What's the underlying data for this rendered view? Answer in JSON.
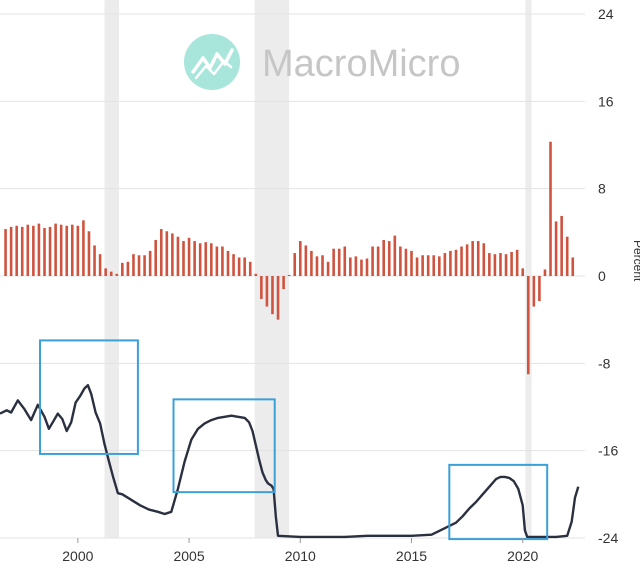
{
  "watermark": {
    "brand": "MacroMicro",
    "logo_color": "#a8e6dc"
  },
  "colors": {
    "bar": "#cf5440",
    "line": "#2a3040",
    "recession": "#ececec",
    "grid": "#e3e3e3",
    "box": "#3ba0d8"
  },
  "chart_data": {
    "type": "bar",
    "title": "",
    "xlabel": "",
    "ylabel": "Percent",
    "xlim": [
      1996.5,
      2022.8
    ],
    "ylim": [
      -24,
      24
    ],
    "y_ticks": [
      -24,
      -16,
      -8,
      0,
      8,
      16,
      24
    ],
    "x_ticks": [
      2000,
      2005,
      2010,
      2015,
      2020
    ],
    "grid": "horizontal",
    "recession_shading": [
      {
        "start": 2001.2,
        "end": 2001.85
      },
      {
        "start": 2007.95,
        "end": 2009.5
      },
      {
        "start": 2020.12,
        "end": 2020.4
      }
    ],
    "series": [
      {
        "kind": "bar",
        "frequency": "quarterly",
        "x": [
          1996.75,
          1997.0,
          1997.25,
          1997.5,
          1997.75,
          1998.0,
          1998.25,
          1998.5,
          1998.75,
          1999.0,
          1999.25,
          1999.5,
          1999.75,
          2000.0,
          2000.25,
          2000.5,
          2000.75,
          2001.0,
          2001.25,
          2001.5,
          2001.75,
          2002.0,
          2002.25,
          2002.5,
          2002.75,
          2003.0,
          2003.25,
          2003.5,
          2003.75,
          2004.0,
          2004.25,
          2004.5,
          2004.75,
          2005.0,
          2005.25,
          2005.5,
          2005.75,
          2006.0,
          2006.25,
          2006.5,
          2006.75,
          2007.0,
          2007.25,
          2007.5,
          2007.75,
          2008.0,
          2008.25,
          2008.5,
          2008.75,
          2009.0,
          2009.25,
          2009.5,
          2009.75,
          2010.0,
          2010.25,
          2010.5,
          2010.75,
          2011.0,
          2011.25,
          2011.5,
          2011.75,
          2012.0,
          2012.25,
          2012.5,
          2012.75,
          2013.0,
          2013.25,
          2013.5,
          2013.75,
          2014.0,
          2014.25,
          2014.5,
          2014.75,
          2015.0,
          2015.25,
          2015.5,
          2015.75,
          2016.0,
          2016.25,
          2016.5,
          2016.75,
          2017.0,
          2017.25,
          2017.5,
          2017.75,
          2018.0,
          2018.25,
          2018.5,
          2018.75,
          2019.0,
          2019.25,
          2019.5,
          2019.75,
          2020.0,
          2020.25,
          2020.5,
          2020.75,
          2021.0,
          2021.25,
          2021.5,
          2021.75,
          2022.0,
          2022.25
        ],
        "values": [
          4.3,
          4.5,
          4.6,
          4.5,
          4.7,
          4.6,
          4.8,
          4.4,
          4.5,
          4.8,
          4.7,
          4.6,
          4.7,
          4.6,
          5.1,
          4.1,
          2.8,
          2.0,
          0.7,
          0.4,
          0.2,
          1.2,
          1.3,
          2.0,
          1.9,
          1.9,
          2.3,
          3.3,
          4.3,
          4.1,
          3.9,
          3.6,
          3.2,
          3.5,
          3.2,
          3.0,
          3.1,
          3.0,
          2.7,
          2.7,
          2.3,
          2.0,
          1.7,
          1.7,
          1.3,
          0.2,
          -2.1,
          -2.8,
          -3.5,
          -4.0,
          -1.2,
          0.1,
          2.1,
          3.2,
          2.8,
          2.3,
          1.8,
          1.9,
          1.3,
          2.5,
          2.5,
          2.7,
          1.7,
          1.8,
          1.5,
          1.6,
          2.7,
          2.7,
          3.3,
          3.2,
          3.7,
          2.7,
          2.5,
          2.3,
          1.7,
          1.9,
          1.9,
          1.9,
          1.8,
          2.1,
          2.3,
          2.4,
          2.7,
          2.9,
          3.2,
          3.2,
          3.0,
          2.1,
          2.0,
          2.1,
          2.0,
          2.2,
          2.4,
          0.7,
          -9.0,
          -2.8,
          -2.3,
          0.6,
          12.3,
          5.0,
          5.5,
          3.6,
          1.7
        ]
      },
      {
        "kind": "line",
        "frequency": "daily",
        "x": [
          1996.5,
          1996.8,
          1997.0,
          1997.3,
          1997.6,
          1997.9,
          1998.2,
          1998.5,
          1998.7,
          1998.9,
          1999.1,
          1999.3,
          1999.5,
          1999.7,
          1999.9,
          2000.1,
          2000.3,
          2000.45,
          2000.6,
          2000.8,
          2001.0,
          2001.2,
          2001.4,
          2001.6,
          2001.8,
          2002.0,
          2002.4,
          2002.8,
          2003.2,
          2003.6,
          2003.9,
          2004.2,
          2004.5,
          2004.8,
          2005.1,
          2005.4,
          2005.7,
          2006.0,
          2006.3,
          2006.6,
          2006.9,
          2007.2,
          2007.5,
          2007.7,
          2007.85,
          2008.0,
          2008.15,
          2008.3,
          2008.45,
          2008.55,
          2008.7,
          2008.8,
          2008.9,
          2009.0,
          2010.0,
          2011.0,
          2012.0,
          2013.0,
          2014.0,
          2015.0,
          2015.9,
          2016.2,
          2016.6,
          2017.0,
          2017.3,
          2017.6,
          2017.9,
          2018.2,
          2018.5,
          2018.8,
          2019.0,
          2019.2,
          2019.4,
          2019.6,
          2019.8,
          2020.0,
          2020.1,
          2020.2,
          2020.35,
          2020.6,
          2021.0,
          2021.5,
          2022.0,
          2022.2,
          2022.35,
          2022.5
        ],
        "values": [
          -12.6,
          -12.3,
          -12.5,
          -11.4,
          -12.2,
          -13.2,
          -11.8,
          -12.9,
          -14.0,
          -13.3,
          -12.6,
          -13.1,
          -14.2,
          -13.4,
          -11.6,
          -11.0,
          -10.3,
          -10.0,
          -10.8,
          -12.5,
          -13.5,
          -15.4,
          -17.0,
          -18.5,
          -19.9,
          -20.0,
          -20.5,
          -21.0,
          -21.4,
          -21.6,
          -21.8,
          -21.6,
          -19.5,
          -17.0,
          -15.0,
          -14.0,
          -13.5,
          -13.2,
          -13.0,
          -12.9,
          -12.8,
          -12.9,
          -13.0,
          -13.4,
          -14.2,
          -15.5,
          -16.8,
          -18.0,
          -18.7,
          -19.0,
          -19.2,
          -19.5,
          -22.0,
          -23.8,
          -23.9,
          -23.9,
          -23.9,
          -23.8,
          -23.8,
          -23.8,
          -23.7,
          -23.4,
          -23.0,
          -22.6,
          -22.0,
          -21.3,
          -20.7,
          -20.0,
          -19.3,
          -18.6,
          -18.4,
          -18.4,
          -18.5,
          -18.8,
          -19.5,
          -21.0,
          -23.3,
          -23.9,
          -23.9,
          -23.9,
          -23.9,
          -23.9,
          -23.8,
          -22.5,
          -20.3,
          -19.3
        ]
      }
    ],
    "annotations": [
      {
        "type": "box",
        "x": [
          1998.3,
          2002.7
        ],
        "y": [
          -16.3,
          -5.9
        ]
      },
      {
        "type": "box",
        "x": [
          2004.3,
          2008.85
        ],
        "y": [
          -19.8,
          -11.3
        ]
      },
      {
        "type": "box",
        "x": [
          2016.7,
          2021.1
        ],
        "y": [
          -24.1,
          -17.3
        ]
      }
    ]
  }
}
